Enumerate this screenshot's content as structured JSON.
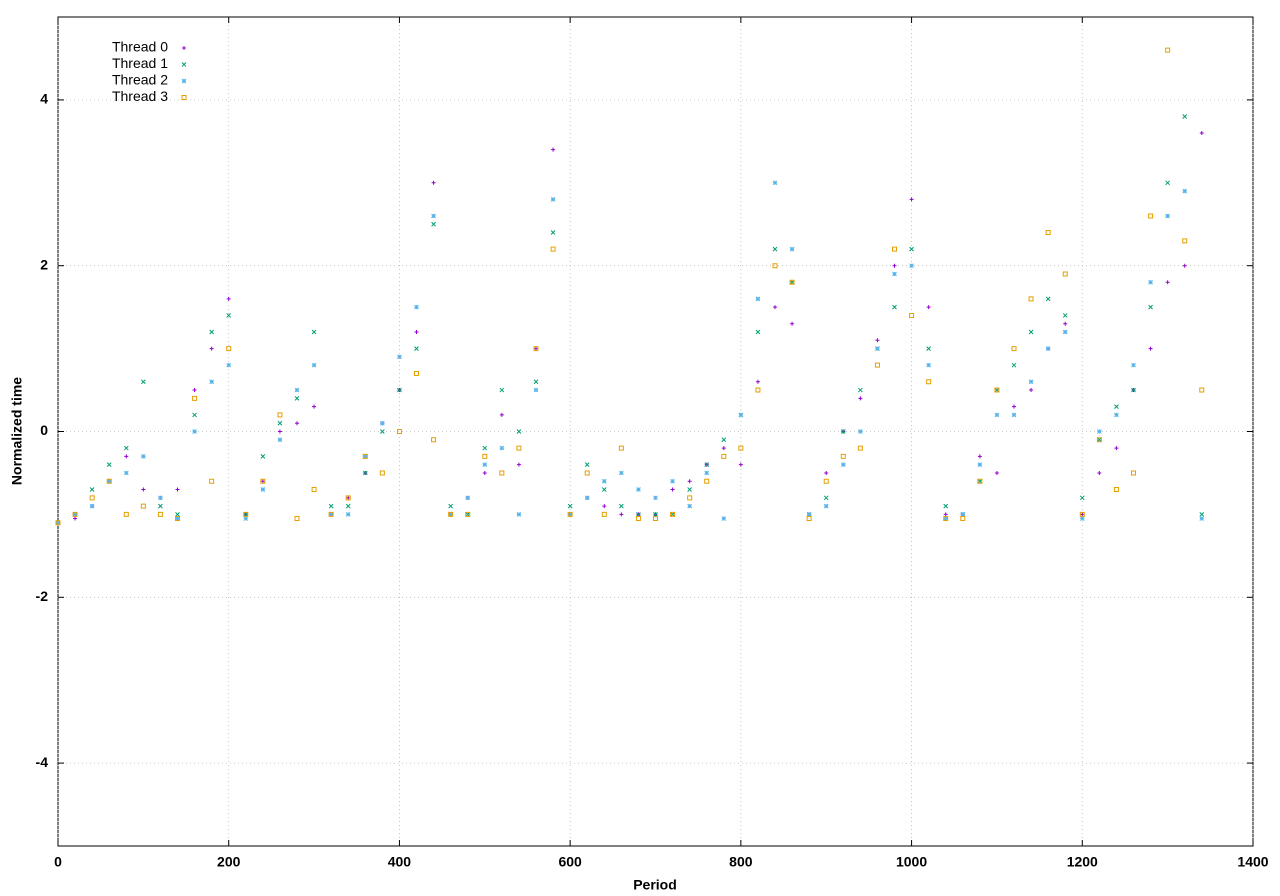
{
  "chart_data": {
    "type": "scatter",
    "x_label": "Period",
    "y_label": "Normalized time",
    "xlim": [
      0,
      1400
    ],
    "xticks": [
      0,
      200,
      400,
      600,
      800,
      1000,
      1200,
      1400
    ],
    "ylim": [
      -5,
      5
    ],
    "yticks": [
      -4,
      -2,
      0,
      2,
      4
    ],
    "grid": true,
    "legend": "top-left",
    "x": [
      0,
      20,
      40,
      60,
      80,
      100,
      120,
      140,
      160,
      180,
      200,
      220,
      240,
      260,
      280,
      300,
      320,
      340,
      360,
      380,
      400,
      420,
      440,
      460,
      480,
      500,
      520,
      540,
      560,
      580,
      600,
      620,
      640,
      660,
      680,
      700,
      720,
      740,
      760,
      780,
      800,
      820,
      840,
      860,
      880,
      900,
      920,
      940,
      960,
      980,
      1000,
      1020,
      1040,
      1060,
      1080,
      1100,
      1120,
      1140,
      1160,
      1180,
      1200,
      1220,
      1240,
      1260,
      1280,
      1300,
      1320,
      1340
    ],
    "series": [
      {
        "name": "Thread 0",
        "color": "#9400d3",
        "marker": "plus",
        "values": [
          -1.1,
          -1.05,
          -0.9,
          -0.6,
          -0.3,
          -0.7,
          -0.8,
          -0.7,
          0.5,
          1.0,
          1.6,
          -1.0,
          -0.6,
          0.0,
          0.1,
          0.3,
          -1.0,
          -0.8,
          -0.5,
          0.1,
          0.5,
          1.2,
          3.0,
          -1.0,
          -0.8,
          -0.5,
          0.2,
          -0.4,
          1.0,
          3.4,
          -1.0,
          -0.8,
          -0.9,
          -1.0,
          -1.0,
          -1.0,
          -0.7,
          -0.6,
          -0.4,
          -0.2,
          -0.4,
          0.6,
          1.5,
          1.3,
          -1.0,
          -0.5,
          0.0,
          0.4,
          1.1,
          2.0,
          2.8,
          1.5,
          -1.0,
          -1.0,
          -0.3,
          -0.5,
          0.3,
          0.5,
          1.0,
          1.3,
          -1.0,
          -0.5,
          -0.2,
          0.5,
          1.0,
          1.8,
          2.0,
          3.6
        ]
      },
      {
        "name": "Thread 1",
        "color": "#009e73",
        "marker": "cross",
        "values": [
          -1.1,
          -1.0,
          -0.7,
          -0.4,
          -0.2,
          0.6,
          -0.9,
          -1.0,
          0.2,
          1.2,
          1.4,
          -1.0,
          -0.3,
          0.1,
          0.4,
          1.2,
          -0.9,
          -0.9,
          -0.5,
          0.0,
          0.5,
          1.0,
          2.5,
          -0.9,
          -1.0,
          -0.2,
          0.5,
          0.0,
          0.6,
          2.4,
          -0.9,
          -0.4,
          -0.7,
          -0.9,
          -1.0,
          -1.0,
          -1.0,
          -0.7,
          -0.4,
          -0.1,
          0.2,
          1.2,
          2.2,
          1.8,
          -1.0,
          -0.8,
          0.0,
          0.5,
          1.0,
          1.5,
          2.2,
          1.0,
          -0.9,
          -1.0,
          -0.6,
          0.5,
          0.8,
          1.2,
          1.6,
          1.4,
          -0.8,
          -0.1,
          0.3,
          0.5,
          1.5,
          3.0,
          3.8,
          -1.0
        ]
      },
      {
        "name": "Thread 2",
        "color": "#56b4e9",
        "marker": "star",
        "values": [
          -1.1,
          -1.0,
          -0.9,
          -0.6,
          -0.5,
          -0.3,
          -0.8,
          -1.05,
          0.0,
          0.6,
          0.8,
          -1.05,
          -0.7,
          -0.1,
          0.5,
          0.8,
          -1.0,
          -1.0,
          -0.3,
          0.1,
          0.9,
          1.5,
          2.6,
          -1.0,
          -0.8,
          -0.4,
          -0.2,
          -1.0,
          0.5,
          2.8,
          -1.0,
          -0.8,
          -0.6,
          -0.5,
          -0.7,
          -0.8,
          -0.6,
          -0.9,
          -0.5,
          -1.05,
          0.2,
          1.6,
          3.0,
          2.2,
          -1.0,
          -0.9,
          -0.4,
          0.0,
          1.0,
          1.9,
          2.0,
          0.8,
          -1.05,
          -1.0,
          -0.4,
          0.2,
          0.2,
          0.6,
          1.0,
          1.2,
          -1.05,
          0.0,
          0.2,
          0.8,
          1.8,
          2.6,
          2.9,
          -1.05
        ]
      },
      {
        "name": "Thread 3",
        "color": "#e69f00",
        "marker": "square",
        "values": [
          -1.1,
          -1.0,
          -0.8,
          -0.6,
          -1.0,
          -0.9,
          -1.0,
          -1.05,
          0.4,
          -0.6,
          1.0,
          -1.0,
          -0.6,
          0.2,
          -1.05,
          -0.7,
          -1.0,
          -0.8,
          -0.3,
          -0.5,
          0.0,
          0.7,
          -0.1,
          -1.0,
          -1.0,
          -0.3,
          -0.5,
          -0.2,
          1.0,
          2.2,
          -1.0,
          -0.5,
          -1.0,
          -0.2,
          -1.05,
          -1.05,
          -1.0,
          -0.8,
          -0.6,
          -0.3,
          -0.2,
          0.5,
          2.0,
          1.8,
          -1.05,
          -0.6,
          -0.3,
          -0.2,
          0.8,
          2.2,
          1.4,
          0.6,
          -1.05,
          -1.05,
          -0.6,
          0.5,
          1.0,
          1.6,
          2.4,
          1.9,
          -1.0,
          -0.1,
          -0.7,
          -0.5,
          2.6,
          4.6,
          2.3,
          0.5
        ]
      }
    ]
  }
}
